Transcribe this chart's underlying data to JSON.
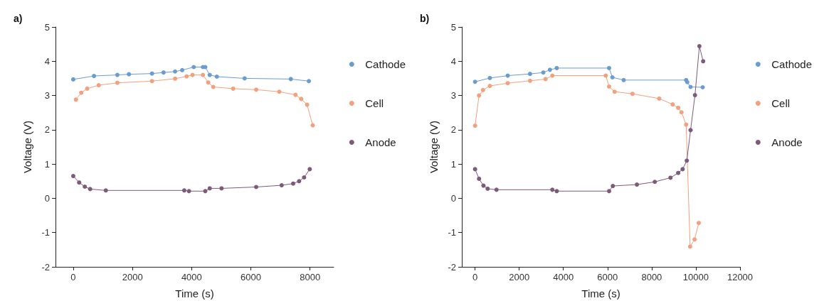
{
  "chart_data": [
    {
      "type": "line",
      "title": "a)",
      "xlabel": "Time (s)",
      "ylabel": "Voltage (V)",
      "xlim": [
        -600,
        8800
      ],
      "xticks": [
        0,
        2000,
        4000,
        6000,
        8000
      ],
      "ylim": [
        -2,
        5
      ],
      "yticks": [
        -2,
        -1,
        0,
        1,
        2,
        3,
        4,
        5
      ],
      "grid": false,
      "legend": "right",
      "marker": "circle",
      "line_style": "solid",
      "series": [
        {
          "name": "Cathode",
          "color": "#6a9ccf",
          "x": [
            0,
            700,
            1490,
            1880,
            2660,
            3050,
            3440,
            3680,
            4070,
            4380,
            4460,
            4610,
            4850,
            5790,
            7350,
            7960
          ],
          "values": [
            3.47,
            3.57,
            3.6,
            3.62,
            3.64,
            3.67,
            3.7,
            3.74,
            3.83,
            3.83,
            3.83,
            3.6,
            3.55,
            3.5,
            3.48,
            3.42
          ]
        },
        {
          "name": "Cell",
          "color": "#f2a07e",
          "x": [
            90,
            270,
            470,
            860,
            1490,
            2660,
            3440,
            3830,
            4030,
            4380,
            4560,
            4730,
            5400,
            6180,
            6960,
            7510,
            7700,
            7900,
            8090
          ],
          "values": [
            2.88,
            3.08,
            3.2,
            3.3,
            3.37,
            3.42,
            3.49,
            3.56,
            3.6,
            3.6,
            3.38,
            3.25,
            3.2,
            3.17,
            3.11,
            3.02,
            2.9,
            2.73,
            2.13
          ]
        },
        {
          "name": "Anode",
          "color": "#7d5a7a",
          "x": [
            0,
            200,
            390,
            570,
            1100,
            3750,
            3910,
            4460,
            4610,
            5010,
            6180,
            7040,
            7430,
            7630,
            7800,
            7990
          ],
          "values": [
            0.65,
            0.46,
            0.34,
            0.27,
            0.23,
            0.23,
            0.21,
            0.21,
            0.29,
            0.29,
            0.33,
            0.38,
            0.43,
            0.5,
            0.61,
            0.85
          ]
        }
      ]
    },
    {
      "type": "line",
      "title": "b)",
      "xlabel": "Time (s)",
      "ylabel": "Voltage (V)",
      "xlim": [
        -600,
        12000
      ],
      "xticks": [
        0,
        2000,
        4000,
        6000,
        8000,
        10000,
        12000
      ],
      "ylim": [
        -2,
        5
      ],
      "yticks": [
        -2,
        -1,
        0,
        1,
        2,
        3,
        4,
        5
      ],
      "grid": false,
      "legend": "right",
      "marker": "circle",
      "line_style": "solid",
      "series": [
        {
          "name": "Cathode",
          "color": "#6a9ccf",
          "x": [
            0,
            670,
            1480,
            2490,
            3090,
            3390,
            3700,
            6070,
            6220,
            6730,
            9560,
            9610,
            9760,
            10310
          ],
          "values": [
            3.4,
            3.51,
            3.58,
            3.63,
            3.67,
            3.75,
            3.8,
            3.8,
            3.53,
            3.45,
            3.45,
            3.39,
            3.25,
            3.24
          ]
        },
        {
          "name": "Cell",
          "color": "#f2a07e",
          "x": [
            0,
            180,
            360,
            670,
            1480,
            2490,
            3190,
            3500,
            5920,
            6070,
            6320,
            7130,
            8340,
            8950,
            9200,
            9350,
            9560,
            9740,
            9940,
            10130
          ],
          "values": [
            2.12,
            3.0,
            3.16,
            3.28,
            3.36,
            3.43,
            3.48,
            3.58,
            3.58,
            3.26,
            3.11,
            3.05,
            2.91,
            2.74,
            2.64,
            2.51,
            2.15,
            -1.41,
            -1.2,
            -0.72
          ]
        },
        {
          "name": "Anode",
          "color": "#7d5a7a",
          "x": [
            0,
            180,
            380,
            570,
            970,
            3500,
            3700,
            6070,
            6240,
            7330,
            8140,
            8850,
            9200,
            9400,
            9590,
            9760,
            9960,
            10160,
            10330
          ],
          "values": [
            0.85,
            0.57,
            0.37,
            0.28,
            0.25,
            0.25,
            0.21,
            0.21,
            0.36,
            0.4,
            0.48,
            0.6,
            0.74,
            0.85,
            1.1,
            1.99,
            3.01,
            4.44,
            4.0
          ]
        }
      ]
    }
  ]
}
